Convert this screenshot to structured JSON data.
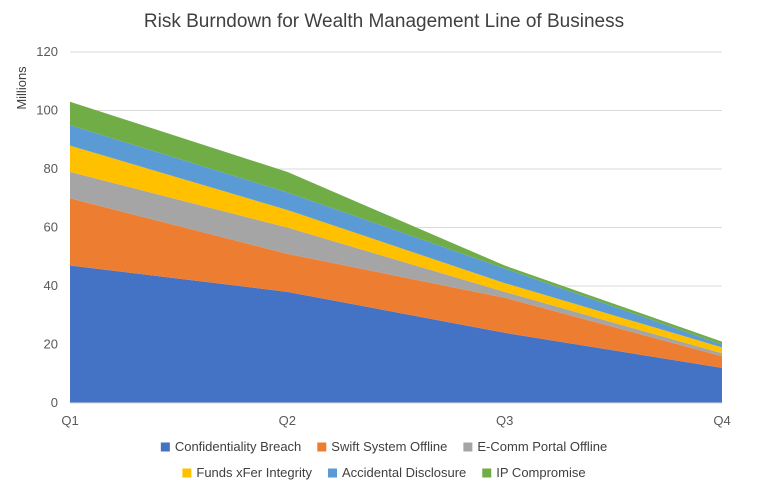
{
  "chart_data": {
    "type": "area",
    "stacked": true,
    "title": "Risk Burndown for Wealth Management Line of Business",
    "ylabel": "Millions",
    "xlabel": "",
    "categories": [
      "Q1",
      "Q2",
      "Q3",
      "Q4"
    ],
    "ylim": [
      0,
      120
    ],
    "yticks": [
      0,
      20,
      40,
      60,
      80,
      100,
      120
    ],
    "grid": true,
    "legend_position": "bottom",
    "series": [
      {
        "name": "Confidentiality Breach",
        "color": "#4472C4",
        "values": [
          47,
          38,
          24,
          12
        ]
      },
      {
        "name": "Swift System Offline",
        "color": "#ED7D31",
        "values": [
          23,
          13,
          12,
          4
        ]
      },
      {
        "name": "E-Comm Portal Offline",
        "color": "#A5A5A5",
        "values": [
          9,
          9,
          2,
          1
        ]
      },
      {
        "name": "Funds xFer Integrity",
        "color": "#FFC000",
        "values": [
          9,
          6,
          3,
          2
        ]
      },
      {
        "name": "Accidental Disclosure",
        "color": "#5B9BD5",
        "values": [
          7,
          6,
          5,
          1
        ]
      },
      {
        "name": "IP Compromise",
        "color": "#70AD47",
        "values": [
          8,
          7,
          1,
          1
        ]
      }
    ]
  }
}
